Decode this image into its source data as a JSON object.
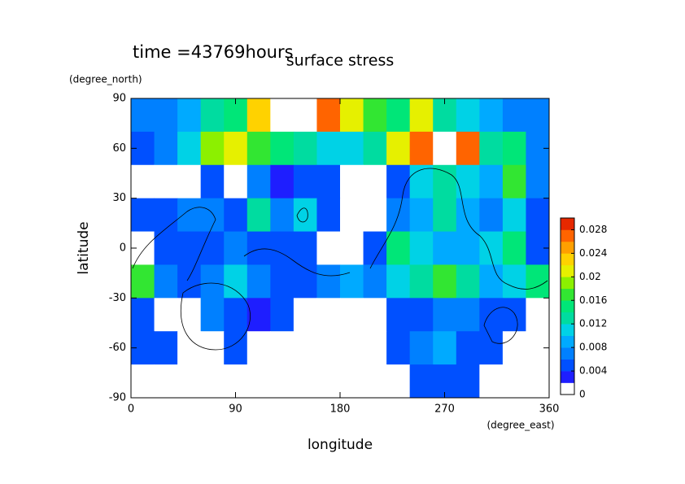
{
  "chart_data": {
    "type": "contour",
    "title": "surface stress",
    "subtitle": "time =43769hours",
    "x_label": "longitude",
    "y_label": "latitude",
    "x_unit": "(degree_east)",
    "y_unit": "(degree_north)",
    "xlim": [
      0,
      360
    ],
    "ylim": [
      -90,
      90
    ],
    "xticks": [
      0,
      90,
      180,
      270,
      360
    ],
    "yticks": [
      -90,
      -60,
      -30,
      0,
      30,
      60,
      90
    ],
    "x": [
      10,
      30,
      50,
      70,
      90,
      110,
      130,
      150,
      170,
      190,
      210,
      230,
      250,
      270,
      290,
      310,
      330,
      350
    ],
    "y": [
      80,
      60,
      40,
      20,
      0,
      -20,
      -40,
      -60,
      -80
    ],
    "z": [
      [
        0.006,
        0.006,
        0.008,
        0.012,
        0.014,
        0.022,
        0.03,
        0.032,
        0.026,
        0.02,
        0.016,
        0.014,
        0.02,
        0.012,
        0.01,
        0.008,
        0.006,
        0.006
      ],
      [
        0.004,
        0.006,
        0.01,
        0.018,
        0.02,
        0.016,
        0.014,
        0.012,
        0.01,
        0.01,
        0.012,
        0.02,
        0.026,
        0.03,
        0.026,
        0.012,
        0.014,
        0.006
      ],
      [
        0.001,
        0.001,
        0.001,
        0.004,
        0.001,
        0.006,
        0.002,
        0.004,
        0.004,
        0.001,
        0.001,
        0.004,
        0.01,
        0.012,
        0.01,
        0.008,
        0.016,
        0.006
      ],
      [
        0.004,
        0.004,
        0.006,
        0.006,
        0.004,
        0.012,
        0.006,
        0.01,
        0.004,
        0.001,
        0.001,
        0.006,
        0.008,
        0.012,
        0.008,
        0.006,
        0.01,
        0.004
      ],
      [
        0.001,
        0.004,
        0.004,
        0.004,
        0.006,
        0.004,
        0.004,
        0.004,
        0.001,
        0.001,
        0.004,
        0.014,
        0.01,
        0.008,
        0.008,
        0.01,
        0.014,
        0.004
      ],
      [
        0.016,
        0.006,
        0.004,
        0.006,
        0.01,
        0.006,
        0.004,
        0.004,
        0.006,
        0.008,
        0.006,
        0.01,
        0.012,
        0.016,
        0.012,
        0.008,
        0.01,
        0.014
      ],
      [
        0.004,
        0.001,
        0.001,
        0.006,
        0.004,
        0.002,
        0.004,
        0.001,
        0.001,
        0.001,
        0.001,
        0.004,
        0.004,
        0.006,
        0.006,
        0.004,
        0.004,
        0.001
      ],
      [
        0.004,
        0.004,
        0.001,
        0.001,
        0.004,
        0.001,
        0.001,
        0.001,
        0.001,
        0.001,
        0.001,
        0.004,
        0.006,
        0.008,
        0.004,
        0.004,
        0.001,
        0.001
      ],
      [
        0.001,
        0.001,
        0.001,
        0.001,
        0.001,
        0.001,
        0.001,
        0.001,
        0.001,
        0.001,
        0.001,
        0.001,
        0.004,
        0.004,
        0.004,
        0.001,
        0.001,
        0.001
      ]
    ],
    "zlim": [
      0,
      0.03
    ],
    "zticks": [
      0,
      0.004,
      0.008,
      0.012,
      0.016,
      0.02,
      0.024,
      0.028
    ],
    "colors": [
      "#ffffff",
      "#1e1eff",
      "#0050ff",
      "#0080ff",
      "#00aaff",
      "#00d2e6",
      "#00dca0",
      "#00e678",
      "#32e632",
      "#8cf000",
      "#e6f000",
      "#ffd200",
      "#ffa000",
      "#ff6400",
      "#e62800"
    ],
    "over_color": "#ffffff"
  }
}
